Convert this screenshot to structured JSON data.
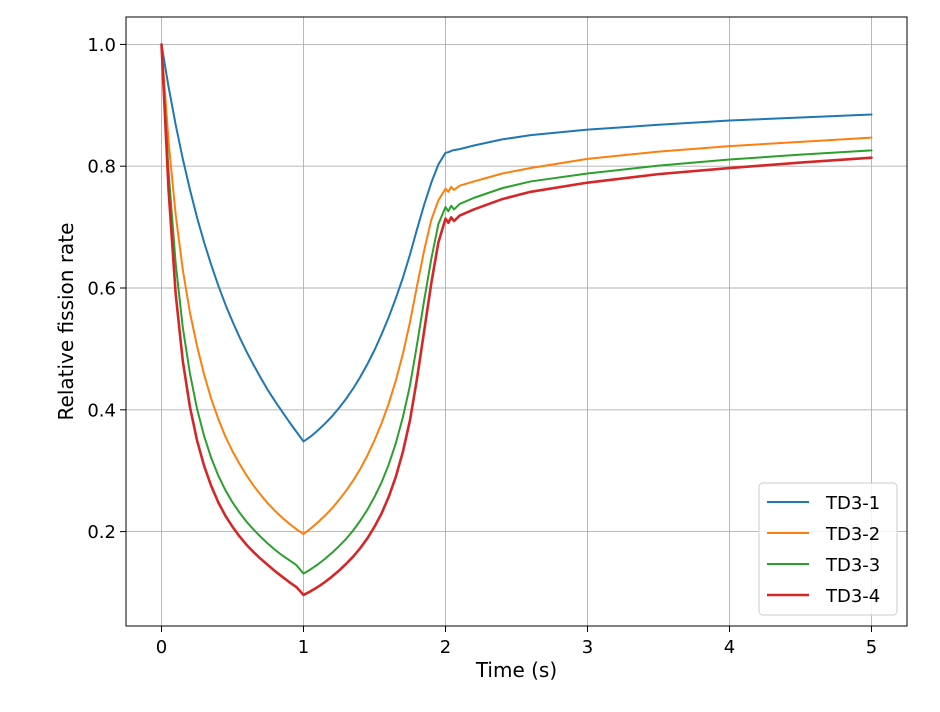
{
  "chart_data": {
    "type": "line",
    "title": "",
    "xlabel": "Time (s)",
    "ylabel": "Relative fission rate",
    "xlim": [
      -0.25,
      5.25
    ],
    "ylim": [
      0.045,
      1.045
    ],
    "xticks": [
      0,
      1,
      2,
      3,
      4,
      5
    ],
    "xtick_labels": [
      "0",
      "1",
      "2",
      "3",
      "4",
      "5"
    ],
    "yticks": [
      0.2,
      0.4,
      0.6,
      0.8,
      1.0
    ],
    "ytick_labels": [
      "0.2",
      "0.4",
      "0.6",
      "0.8",
      "1.0"
    ],
    "grid": true,
    "legend_position": "bottom-right",
    "series": [
      {
        "name": "TD3-1",
        "color": "#1f77b4",
        "x": [
          0,
          0.05,
          0.1,
          0.15,
          0.2,
          0.25,
          0.3,
          0.35,
          0.4,
          0.45,
          0.5,
          0.55,
          0.6,
          0.65,
          0.7,
          0.75,
          0.8,
          0.85,
          0.9,
          0.95,
          1.0,
          1.05,
          1.1,
          1.15,
          1.2,
          1.25,
          1.3,
          1.35,
          1.4,
          1.45,
          1.5,
          1.55,
          1.6,
          1.65,
          1.7,
          1.75,
          1.8,
          1.85,
          1.9,
          1.95,
          2.0,
          2.02,
          2.05,
          2.1,
          2.2,
          2.4,
          2.6,
          3.0,
          3.5,
          4.0,
          4.5,
          5.0
        ],
        "y": [
          1.0,
          0.93,
          0.868,
          0.812,
          0.762,
          0.716,
          0.675,
          0.638,
          0.604,
          0.573,
          0.545,
          0.519,
          0.495,
          0.473,
          0.452,
          0.432,
          0.414,
          0.397,
          0.38,
          0.364,
          0.348,
          0.356,
          0.366,
          0.377,
          0.389,
          0.403,
          0.418,
          0.435,
          0.454,
          0.475,
          0.498,
          0.524,
          0.552,
          0.583,
          0.617,
          0.655,
          0.697,
          0.737,
          0.773,
          0.803,
          0.822,
          0.823,
          0.826,
          0.828,
          0.834,
          0.844,
          0.851,
          0.86,
          0.868,
          0.875,
          0.88,
          0.885
        ]
      },
      {
        "name": "TD3-2",
        "color": "#ff7f0e",
        "x": [
          0,
          0.05,
          0.1,
          0.15,
          0.2,
          0.25,
          0.3,
          0.35,
          0.4,
          0.45,
          0.5,
          0.55,
          0.6,
          0.65,
          0.7,
          0.75,
          0.8,
          0.85,
          0.9,
          0.95,
          1.0,
          1.05,
          1.1,
          1.15,
          1.2,
          1.25,
          1.3,
          1.35,
          1.4,
          1.45,
          1.5,
          1.55,
          1.6,
          1.65,
          1.7,
          1.75,
          1.8,
          1.85,
          1.9,
          1.95,
          2.0,
          2.02,
          2.04,
          2.06,
          2.1,
          2.2,
          2.4,
          2.6,
          3.0,
          3.5,
          4.0,
          4.5,
          5.0
        ],
        "y": [
          1.0,
          0.84,
          0.72,
          0.63,
          0.56,
          0.505,
          0.458,
          0.418,
          0.385,
          0.356,
          0.332,
          0.311,
          0.292,
          0.275,
          0.26,
          0.246,
          0.234,
          0.223,
          0.213,
          0.204,
          0.196,
          0.205,
          0.215,
          0.226,
          0.238,
          0.252,
          0.267,
          0.284,
          0.303,
          0.325,
          0.35,
          0.378,
          0.41,
          0.448,
          0.492,
          0.544,
          0.604,
          0.662,
          0.712,
          0.744,
          0.763,
          0.758,
          0.766,
          0.761,
          0.768,
          0.775,
          0.788,
          0.797,
          0.812,
          0.824,
          0.833,
          0.84,
          0.847
        ]
      },
      {
        "name": "TD3-3",
        "color": "#2ca02c",
        "x": [
          0,
          0.05,
          0.1,
          0.15,
          0.2,
          0.25,
          0.3,
          0.35,
          0.4,
          0.45,
          0.5,
          0.55,
          0.6,
          0.65,
          0.7,
          0.75,
          0.8,
          0.85,
          0.9,
          0.95,
          1.0,
          1.05,
          1.1,
          1.15,
          1.2,
          1.25,
          1.3,
          1.35,
          1.4,
          1.45,
          1.5,
          1.55,
          1.6,
          1.65,
          1.7,
          1.75,
          1.8,
          1.85,
          1.9,
          1.95,
          2.0,
          2.02,
          2.04,
          2.06,
          2.1,
          2.2,
          2.4,
          2.6,
          3.0,
          3.5,
          4.0,
          4.5,
          5.0
        ],
        "y": [
          1.0,
          0.79,
          0.64,
          0.535,
          0.46,
          0.402,
          0.357,
          0.321,
          0.292,
          0.268,
          0.248,
          0.231,
          0.216,
          0.203,
          0.191,
          0.18,
          0.17,
          0.161,
          0.153,
          0.145,
          0.131,
          0.138,
          0.146,
          0.155,
          0.165,
          0.176,
          0.188,
          0.202,
          0.218,
          0.236,
          0.257,
          0.281,
          0.31,
          0.345,
          0.388,
          0.44,
          0.508,
          0.58,
          0.648,
          0.705,
          0.733,
          0.726,
          0.735,
          0.729,
          0.738,
          0.748,
          0.764,
          0.775,
          0.788,
          0.801,
          0.811,
          0.819,
          0.826
        ]
      },
      {
        "name": "TD3-4",
        "color": "#d62728",
        "x": [
          0,
          0.05,
          0.1,
          0.15,
          0.2,
          0.25,
          0.3,
          0.35,
          0.4,
          0.45,
          0.5,
          0.55,
          0.6,
          0.65,
          0.7,
          0.75,
          0.8,
          0.85,
          0.9,
          0.95,
          1.0,
          1.05,
          1.1,
          1.15,
          1.2,
          1.25,
          1.3,
          1.35,
          1.4,
          1.45,
          1.5,
          1.55,
          1.6,
          1.65,
          1.7,
          1.75,
          1.8,
          1.85,
          1.9,
          1.95,
          2.0,
          2.02,
          2.04,
          2.06,
          2.1,
          2.2,
          2.4,
          2.6,
          3.0,
          3.5,
          4.0,
          4.5,
          5.0
        ],
        "y": [
          1.0,
          0.76,
          0.59,
          0.48,
          0.405,
          0.35,
          0.308,
          0.275,
          0.248,
          0.226,
          0.208,
          0.192,
          0.178,
          0.166,
          0.155,
          0.145,
          0.135,
          0.126,
          0.117,
          0.109,
          0.096,
          0.102,
          0.109,
          0.117,
          0.126,
          0.136,
          0.147,
          0.159,
          0.173,
          0.189,
          0.208,
          0.23,
          0.257,
          0.29,
          0.331,
          0.383,
          0.452,
          0.53,
          0.608,
          0.675,
          0.714,
          0.707,
          0.716,
          0.71,
          0.719,
          0.729,
          0.746,
          0.758,
          0.773,
          0.787,
          0.797,
          0.806,
          0.814
        ]
      }
    ]
  }
}
